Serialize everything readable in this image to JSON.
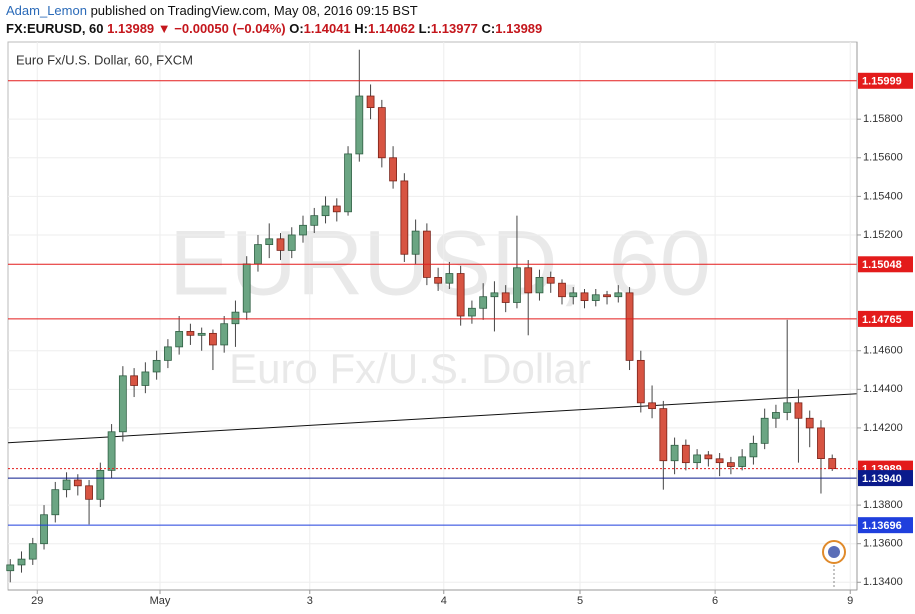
{
  "header": {
    "user": "Adam_Lemon",
    "published": "published on TradingView.com, May 08, 2016 09:15 BST",
    "symbol": "FX:EURUSD, 60",
    "price": "1.13989",
    "arrow": "▼",
    "change": "−0.00050 (−0.04%)",
    "o_label": "O:",
    "open": "1.14041",
    "h_label": "H:",
    "high": "1.14062",
    "l_label": "L:",
    "low": "1.13977",
    "c_label": "C:",
    "close": "1.13989"
  },
  "chart_data": {
    "type": "candlestick",
    "title": "Euro Fx/U.S. Dollar, 60, FXCM",
    "watermark": "EURUSD, 60",
    "watermark_subtitle": "Euro Fx/U.S. Dollar",
    "up_color": "#6ba583",
    "down_color": "#d75442",
    "x": [
      0,
      1,
      2,
      3,
      4,
      5,
      6,
      7,
      8,
      9,
      10,
      11,
      12,
      13,
      14,
      15,
      16,
      17,
      18,
      19,
      20,
      21,
      22,
      23,
      24,
      25,
      26,
      27,
      28,
      29,
      30,
      31,
      32,
      33,
      34,
      35,
      36,
      37,
      38,
      39,
      40,
      41,
      42,
      43,
      44,
      45,
      46,
      47,
      48,
      49,
      50,
      51,
      52,
      53,
      54,
      55,
      56,
      57,
      58,
      59,
      60,
      61,
      62,
      63,
      64,
      65,
      66,
      67,
      68,
      69,
      70,
      71,
      72,
      73
    ],
    "open": [
      1.1346,
      1.1349,
      1.1352,
      1.136,
      1.1375,
      1.1388,
      1.1393,
      1.139,
      1.1383,
      1.1398,
      1.1418,
      1.1447,
      1.1442,
      1.1449,
      1.1455,
      1.1462,
      1.147,
      1.1468,
      1.1469,
      1.1463,
      1.1474,
      1.148,
      1.1505,
      1.1515,
      1.1518,
      1.1512,
      1.152,
      1.1525,
      1.153,
      1.1535,
      1.1532,
      1.1562,
      1.1592,
      1.1586,
      1.156,
      1.1548,
      1.151,
      1.1522,
      1.1498,
      1.1495,
      1.15,
      1.1478,
      1.1482,
      1.1488,
      1.149,
      1.1485,
      1.1503,
      1.149,
      1.1498,
      1.1495,
      1.1488,
      1.149,
      1.1486,
      1.1489,
      1.1488,
      1.149,
      1.1455,
      1.1433,
      1.143,
      1.1403,
      1.1411,
      1.1402,
      1.1406,
      1.1404,
      1.1402,
      1.14,
      1.1405,
      1.1412,
      1.1425,
      1.1428,
      1.1433,
      1.1425,
      1.142,
      1.14041
    ],
    "high": [
      1.1352,
      1.1356,
      1.1363,
      1.138,
      1.1392,
      1.1397,
      1.1396,
      1.1393,
      1.1402,
      1.1422,
      1.1452,
      1.1451,
      1.1454,
      1.146,
      1.1466,
      1.1478,
      1.1474,
      1.1472,
      1.1471,
      1.1478,
      1.1486,
      1.1509,
      1.152,
      1.1526,
      1.1521,
      1.1524,
      1.153,
      1.1534,
      1.154,
      1.1539,
      1.1566,
      1.1616,
      1.1598,
      1.159,
      1.1566,
      1.1552,
      1.1528,
      1.1526,
      1.1503,
      1.1506,
      1.1504,
      1.1486,
      1.1495,
      1.1496,
      1.1494,
      1.153,
      1.1507,
      1.1502,
      1.1501,
      1.1497,
      1.1493,
      1.1492,
      1.1492,
      1.1491,
      1.1494,
      1.1493,
      1.146,
      1.1442,
      1.1434,
      1.1415,
      1.1414,
      1.1409,
      1.1408,
      1.1407,
      1.1405,
      1.1409,
      1.1416,
      1.143,
      1.1432,
      1.1476,
      1.144,
      1.1429,
      1.1424,
      1.14062
    ],
    "low": [
      1.134,
      1.1345,
      1.1349,
      1.1357,
      1.1371,
      1.1384,
      1.1385,
      1.137,
      1.1379,
      1.1394,
      1.1413,
      1.1436,
      1.1438,
      1.1445,
      1.1451,
      1.1458,
      1.1463,
      1.146,
      1.145,
      1.1459,
      1.1462,
      1.1476,
      1.1501,
      1.1508,
      1.1507,
      1.1508,
      1.1516,
      1.1521,
      1.1526,
      1.1527,
      1.153,
      1.1558,
      1.158,
      1.1555,
      1.1544,
      1.1506,
      1.1505,
      1.1494,
      1.1491,
      1.1492,
      1.1473,
      1.1474,
      1.1476,
      1.147,
      1.148,
      1.1482,
      1.1468,
      1.1486,
      1.149,
      1.1484,
      1.1484,
      1.1482,
      1.1483,
      1.1484,
      1.1485,
      1.145,
      1.1428,
      1.1425,
      1.1388,
      1.1396,
      1.1398,
      1.1399,
      1.14,
      1.1395,
      1.1396,
      1.1398,
      1.1401,
      1.1409,
      1.142,
      1.1424,
      1.1402,
      1.141,
      1.1386,
      1.13977
    ],
    "close": [
      1.1349,
      1.1352,
      1.136,
      1.1375,
      1.1388,
      1.1393,
      1.139,
      1.1383,
      1.1398,
      1.1418,
      1.1447,
      1.1442,
      1.1449,
      1.1455,
      1.1462,
      1.147,
      1.1468,
      1.1469,
      1.1463,
      1.1474,
      1.148,
      1.1505,
      1.1515,
      1.1518,
      1.1512,
      1.152,
      1.1525,
      1.153,
      1.1535,
      1.1532,
      1.1562,
      1.1592,
      1.1586,
      1.156,
      1.1548,
      1.151,
      1.1522,
      1.1498,
      1.1495,
      1.15,
      1.1478,
      1.1482,
      1.1488,
      1.149,
      1.1485,
      1.1503,
      1.149,
      1.1498,
      1.1495,
      1.1488,
      1.149,
      1.1486,
      1.1489,
      1.1488,
      1.149,
      1.1455,
      1.1433,
      1.143,
      1.1403,
      1.1411,
      1.1402,
      1.1406,
      1.1404,
      1.1402,
      1.14,
      1.1405,
      1.1412,
      1.1425,
      1.1428,
      1.1433,
      1.1425,
      1.142,
      1.14041,
      1.13989
    ],
    "xlim": [
      -0.2,
      75.2
    ],
    "ylim": [
      1.1336,
      1.162
    ],
    "xticks": [
      {
        "value": 2.4,
        "label": "29"
      },
      {
        "value": 13.3,
        "label": "May"
      },
      {
        "value": 26.6,
        "label": "3"
      },
      {
        "value": 38.5,
        "label": "4"
      },
      {
        "value": 50.6,
        "label": "5"
      },
      {
        "value": 62.6,
        "label": "6"
      },
      {
        "value": 74.6,
        "label": "9"
      }
    ],
    "yticks": [
      {
        "value": 1.134,
        "label": "1.13400"
      },
      {
        "value": 1.136,
        "label": "1.13600"
      },
      {
        "value": 1.138,
        "label": "1.13800"
      },
      {
        "value": 1.142,
        "label": "1.14200"
      },
      {
        "value": 1.144,
        "label": "1.14400"
      },
      {
        "value": 1.146,
        "label": "1.14600"
      },
      {
        "value": 1.152,
        "label": "1.15200"
      },
      {
        "value": 1.154,
        "label": "1.15400"
      },
      {
        "value": 1.156,
        "label": "1.15600"
      },
      {
        "value": 1.158,
        "label": "1.15800"
      }
    ],
    "grid": true,
    "levels": [
      {
        "value": 1.15999,
        "color": "#e31b1b",
        "style": "solid"
      },
      {
        "value": 1.15048,
        "color": "#e31b1b",
        "style": "solid"
      },
      {
        "value": 1.14765,
        "color": "#e31b1b",
        "style": "solid"
      },
      {
        "value": 1.13989,
        "color": "#e31b1b",
        "style": "dotted"
      },
      {
        "value": 1.1394,
        "label": "1.13940",
        "color": "#0a1a8c",
        "style": "solid"
      },
      {
        "value": 1.13696,
        "color": "#1f3fdd",
        "style": "solid"
      }
    ],
    "trendline": {
      "x": [
        -0.2,
        75.2
      ],
      "y": [
        1.14123,
        1.14377
      ],
      "color": "#111111"
    }
  }
}
